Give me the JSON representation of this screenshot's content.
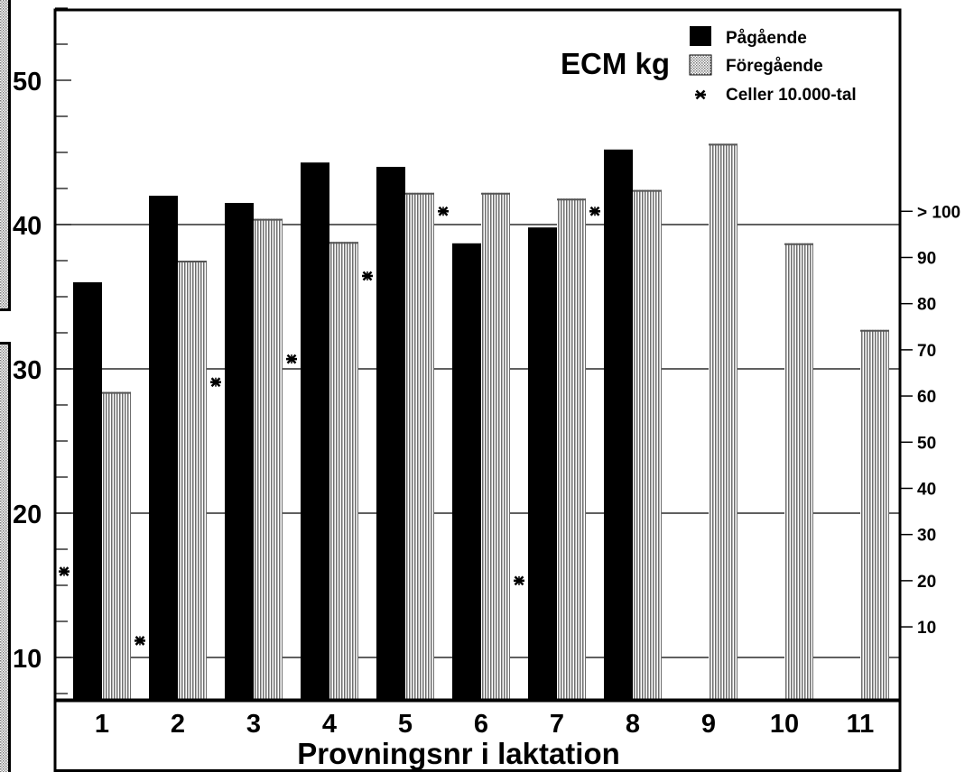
{
  "chart_data": {
    "type": "bar",
    "title": "ECM kg",
    "xlabel": "Provningsnr i laktation",
    "categories": [
      "1",
      "2",
      "3",
      "4",
      "5",
      "6",
      "7",
      "8",
      "9",
      "10",
      "11"
    ],
    "series": [
      {
        "name": "Pågående",
        "color": "#000000",
        "pattern": "solid",
        "values": [
          36.0,
          42.0,
          41.5,
          44.3,
          44.0,
          38.7,
          39.8,
          45.2,
          null,
          null,
          null
        ]
      },
      {
        "name": "Föregående",
        "color": "#9a9a9a",
        "pattern": "vertical-hatch",
        "values": [
          28.4,
          37.5,
          40.4,
          38.8,
          42.2,
          42.2,
          41.8,
          42.4,
          45.6,
          38.7,
          32.7
        ]
      },
      {
        "name": "Celler 10.000-tal",
        "color": "#000000",
        "pattern": "asterisk-marker",
        "axis": "right",
        "points": [
          {
            "x": 0.5,
            "y": 22
          },
          {
            "x": 1.5,
            "y": 7
          },
          {
            "x": 2.5,
            "y": 63
          },
          {
            "x": 3.5,
            "y": 68
          },
          {
            "x": 4.5,
            "y": 86
          },
          {
            "x": 5.5,
            "y": 100
          },
          {
            "x": 6.5,
            "y": 20
          },
          {
            "x": 7.5,
            "y": 100
          }
        ]
      }
    ],
    "left_axis": {
      "ylim": [
        7,
        55
      ],
      "tick_labels": [
        "10",
        "20",
        "30",
        "40",
        "50"
      ],
      "tick_values": [
        10,
        20,
        30,
        40,
        50
      ]
    },
    "right_axis": {
      "ylim": [
        -6,
        144
      ],
      "tick_labels": [
        "10",
        "20",
        "30",
        "40",
        "50",
        "60",
        "70",
        "80",
        "90",
        "> 100"
      ],
      "tick_values": [
        10,
        20,
        30,
        40,
        50,
        60,
        70,
        80,
        90,
        100
      ]
    },
    "gridlines": [
      10,
      20,
      30,
      40
    ],
    "legend_position": "top-right"
  }
}
